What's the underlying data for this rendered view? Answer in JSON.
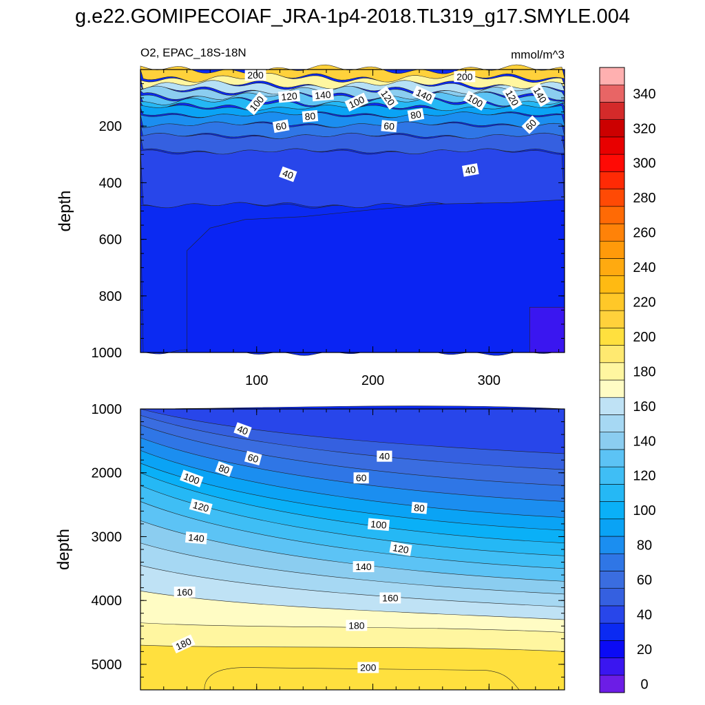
{
  "page": {
    "title": "g.e22.GOMIPECOIAF_JRA-1p4-2018.TL319_g17.SMYLE.004"
  },
  "colors": {
    "frame": "#000000",
    "label_box": "#ffffff"
  },
  "chart_data": [
    {
      "type": "heatmap",
      "subtype": "filled-contour",
      "panel": "upper",
      "left_title": "O2, EPAC_18S-18N",
      "right_title": "mmol/m^3",
      "xlabel": "",
      "ylabel": "depth",
      "xlim": [
        0,
        365
      ],
      "ylim": [
        0,
        1000
      ],
      "y_inverted": true,
      "xticks": [
        100,
        200,
        300
      ],
      "xtick_labels": [
        "100",
        "200",
        "300"
      ],
      "yticks": [
        200,
        400,
        600,
        800,
        1000
      ],
      "ytick_labels": [
        "200",
        "400",
        "600",
        "800",
        "1000"
      ],
      "bands": [
        {
          "depth_top": 0,
          "depth_bottom": 30,
          "value": 210,
          "color": "#ffd13b"
        },
        {
          "depth_top": 30,
          "depth_bottom": 55,
          "value": 185,
          "color": "#fff6a0"
        },
        {
          "depth_top": 55,
          "depth_bottom": 75,
          "value": 165,
          "color": "#b6e0f6"
        },
        {
          "depth_top": 75,
          "depth_bottom": 95,
          "value": 150,
          "color": "#8bcdf0"
        },
        {
          "depth_top": 95,
          "depth_bottom": 115,
          "value": 135,
          "color": "#5cc3f5"
        },
        {
          "depth_top": 115,
          "depth_bottom": 135,
          "value": 120,
          "color": "#25b8f5"
        },
        {
          "depth_top": 135,
          "depth_bottom": 160,
          "value": 110,
          "color": "#0aa3f5"
        },
        {
          "depth_top": 160,
          "depth_bottom": 195,
          "value": 95,
          "color": "#1b8ef0"
        },
        {
          "depth_top": 195,
          "depth_bottom": 235,
          "value": 75,
          "color": "#2f76e6"
        },
        {
          "depth_top": 235,
          "depth_bottom": 290,
          "value": 55,
          "color": "#3560e0"
        },
        {
          "depth_top": 290,
          "depth_bottom": 480,
          "value": 40,
          "color": "#2846ea"
        },
        {
          "depth_top": 480,
          "depth_bottom": 1000,
          "value": 30,
          "color": "#0b2af2"
        }
      ],
      "contour_labels": [
        {
          "text": "200",
          "x": 99,
          "depth": 20,
          "rotate": 0
        },
        {
          "text": "200",
          "x": 279,
          "depth": 25,
          "rotate": 0
        },
        {
          "text": "120",
          "x": 128,
          "depth": 95,
          "rotate": -5
        },
        {
          "text": "140",
          "x": 157,
          "depth": 90,
          "rotate": -5
        },
        {
          "text": "100",
          "x": 100,
          "depth": 120,
          "rotate": -50
        },
        {
          "text": "100",
          "x": 186,
          "depth": 115,
          "rotate": -25
        },
        {
          "text": "120",
          "x": 213,
          "depth": 100,
          "rotate": 55
        },
        {
          "text": "140",
          "x": 244,
          "depth": 90,
          "rotate": 25
        },
        {
          "text": "100",
          "x": 288,
          "depth": 110,
          "rotate": 30
        },
        {
          "text": "120",
          "x": 320,
          "depth": 100,
          "rotate": 60
        },
        {
          "text": "140",
          "x": 344,
          "depth": 90,
          "rotate": 60
        },
        {
          "text": "80",
          "x": 146,
          "depth": 165,
          "rotate": -5
        },
        {
          "text": "80",
          "x": 237,
          "depth": 160,
          "rotate": -10
        },
        {
          "text": "60",
          "x": 121,
          "depth": 200,
          "rotate": -10
        },
        {
          "text": "60",
          "x": 214,
          "depth": 200,
          "rotate": 5
        },
        {
          "text": "60",
          "x": 336,
          "depth": 195,
          "rotate": -45
        },
        {
          "text": "40",
          "x": 127,
          "depth": 370,
          "rotate": 20
        },
        {
          "text": "40",
          "x": 284,
          "depth": 355,
          "rotate": -10
        }
      ]
    },
    {
      "type": "heatmap",
      "subtype": "filled-contour",
      "panel": "lower",
      "xlabel": "",
      "ylabel": "depth",
      "xlim": [
        0,
        365
      ],
      "ylim": [
        1000,
        5400
      ],
      "y_inverted": true,
      "yticks": [
        1000,
        2000,
        3000,
        4000,
        5000
      ],
      "ytick_labels": [
        "1000",
        "2000",
        "3000",
        "4000",
        "5000"
      ],
      "contours": [
        {
          "value": 20,
          "depth_left": 1000,
          "depth_right": 1000
        },
        {
          "value": 40,
          "depth_left": 1000,
          "depth_right": 1700
        },
        {
          "value": 50,
          "depth_left": 1100,
          "depth_right": 1950
        },
        {
          "value": 60,
          "depth_left": 1250,
          "depth_right": 2200
        },
        {
          "value": 70,
          "depth_left": 1450,
          "depth_right": 2450
        },
        {
          "value": 80,
          "depth_left": 1650,
          "depth_right": 2700
        },
        {
          "value": 90,
          "depth_left": 1850,
          "depth_right": 2900
        },
        {
          "value": 100,
          "depth_left": 2000,
          "depth_right": 3100
        },
        {
          "value": 110,
          "depth_left": 2200,
          "depth_right": 3300
        },
        {
          "value": 120,
          "depth_left": 2450,
          "depth_right": 3500
        },
        {
          "value": 130,
          "depth_left": 2750,
          "depth_right": 3700
        },
        {
          "value": 140,
          "depth_left": 3100,
          "depth_right": 3900
        },
        {
          "value": 150,
          "depth_left": 3450,
          "depth_right": 4100
        },
        {
          "value": 160,
          "depth_left": 3850,
          "depth_right": 4300
        },
        {
          "value": 170,
          "depth_left": 4350,
          "depth_right": 4500
        },
        {
          "value": 180,
          "depth_left": 4700,
          "depth_right": 4800
        }
      ],
      "band_colors": [
        {
          "value": 30,
          "color": "#0b2af2"
        },
        {
          "value": 45,
          "color": "#2846ea"
        },
        {
          "value": 55,
          "color": "#3560e0"
        },
        {
          "value": 65,
          "color": "#3a6de0"
        },
        {
          "value": 75,
          "color": "#2f76e6"
        },
        {
          "value": 85,
          "color": "#1b8ef0"
        },
        {
          "value": 95,
          "color": "#0aa3f5"
        },
        {
          "value": 105,
          "color": "#0ab0f7"
        },
        {
          "value": 115,
          "color": "#25b8f5"
        },
        {
          "value": 125,
          "color": "#3fbef5"
        },
        {
          "value": 135,
          "color": "#5cc3f5"
        },
        {
          "value": 145,
          "color": "#8bcdf0"
        },
        {
          "value": 155,
          "color": "#a6d8f3"
        },
        {
          "value": 165,
          "color": "#bfe2f5"
        },
        {
          "value": 175,
          "color": "#fffcc4"
        },
        {
          "value": 185,
          "color": "#fff6a0"
        },
        {
          "value": 195,
          "color": "#ffe970"
        },
        {
          "value": 205,
          "color": "#ffe03e"
        }
      ],
      "core_200": {
        "x_start": 55,
        "x_end": 320,
        "depth_top": 5050,
        "depth_bottom": 5400,
        "color": "#ffe03e"
      },
      "contour_labels": [
        {
          "text": "40",
          "x": 88,
          "depth": 1330,
          "rotate": 20
        },
        {
          "text": "60",
          "x": 97,
          "depth": 1770,
          "rotate": 15
        },
        {
          "text": "80",
          "x": 72,
          "depth": 1940,
          "rotate": 20
        },
        {
          "text": "100",
          "x": 44,
          "depth": 2090,
          "rotate": 20
        },
        {
          "text": "120",
          "x": 52,
          "depth": 2530,
          "rotate": 15
        },
        {
          "text": "140",
          "x": 48,
          "depth": 3020,
          "rotate": 5
        },
        {
          "text": "160",
          "x": 38,
          "depth": 3870,
          "rotate": 0
        },
        {
          "text": "180",
          "x": 37,
          "depth": 4680,
          "rotate": -25
        },
        {
          "text": "40",
          "x": 210,
          "depth": 1740,
          "rotate": 0
        },
        {
          "text": "60",
          "x": 190,
          "depth": 2080,
          "rotate": 0
        },
        {
          "text": "80",
          "x": 240,
          "depth": 2550,
          "rotate": 5
        },
        {
          "text": "100",
          "x": 205,
          "depth": 2810,
          "rotate": 5
        },
        {
          "text": "120",
          "x": 224,
          "depth": 3190,
          "rotate": 10
        },
        {
          "text": "140",
          "x": 192,
          "depth": 3470,
          "rotate": 0
        },
        {
          "text": "160",
          "x": 215,
          "depth": 3960,
          "rotate": 0
        },
        {
          "text": "180",
          "x": 186,
          "depth": 4390,
          "rotate": 0
        },
        {
          "text": "200",
          "x": 196,
          "depth": 5050,
          "rotate": 0
        }
      ]
    },
    {
      "type": "colorbar",
      "levels": [
        0,
        10,
        20,
        30,
        40,
        50,
        60,
        70,
        80,
        90,
        100,
        110,
        120,
        130,
        140,
        150,
        160,
        170,
        180,
        190,
        200,
        210,
        220,
        230,
        240,
        250,
        260,
        270,
        280,
        290,
        300,
        310,
        320,
        330,
        340,
        350
      ],
      "colors": [
        "#6c1de6",
        "#3a16f0",
        "#0b0bf5",
        "#0b2af2",
        "#2846ea",
        "#3560e0",
        "#3a6de0",
        "#2f76e6",
        "#1b8ef0",
        "#0aa3f5",
        "#0ab0f7",
        "#25b8f5",
        "#3fbef5",
        "#5cc3f5",
        "#8bcdf0",
        "#a6d8f3",
        "#bfe2f5",
        "#fffcc4",
        "#fff6a0",
        "#ffe970",
        "#ffe03e",
        "#ffd13b",
        "#ffc828",
        "#ffba12",
        "#ffaa10",
        "#ff9a0a",
        "#ff8208",
        "#ff6a05",
        "#ff4a05",
        "#ff2a05",
        "#ff0a05",
        "#e80000",
        "#cc0000",
        "#d42a2a",
        "#e86565",
        "#ffb0b0"
      ],
      "tick_values": [
        0,
        20,
        40,
        60,
        80,
        100,
        120,
        140,
        160,
        180,
        200,
        220,
        240,
        260,
        280,
        300,
        320,
        340
      ],
      "tick_labels": [
        "0",
        "20",
        "40",
        "60",
        "80",
        "100",
        "120",
        "140",
        "160",
        "180",
        "200",
        "220",
        "240",
        "260",
        "280",
        "300",
        "320",
        "340"
      ]
    }
  ]
}
